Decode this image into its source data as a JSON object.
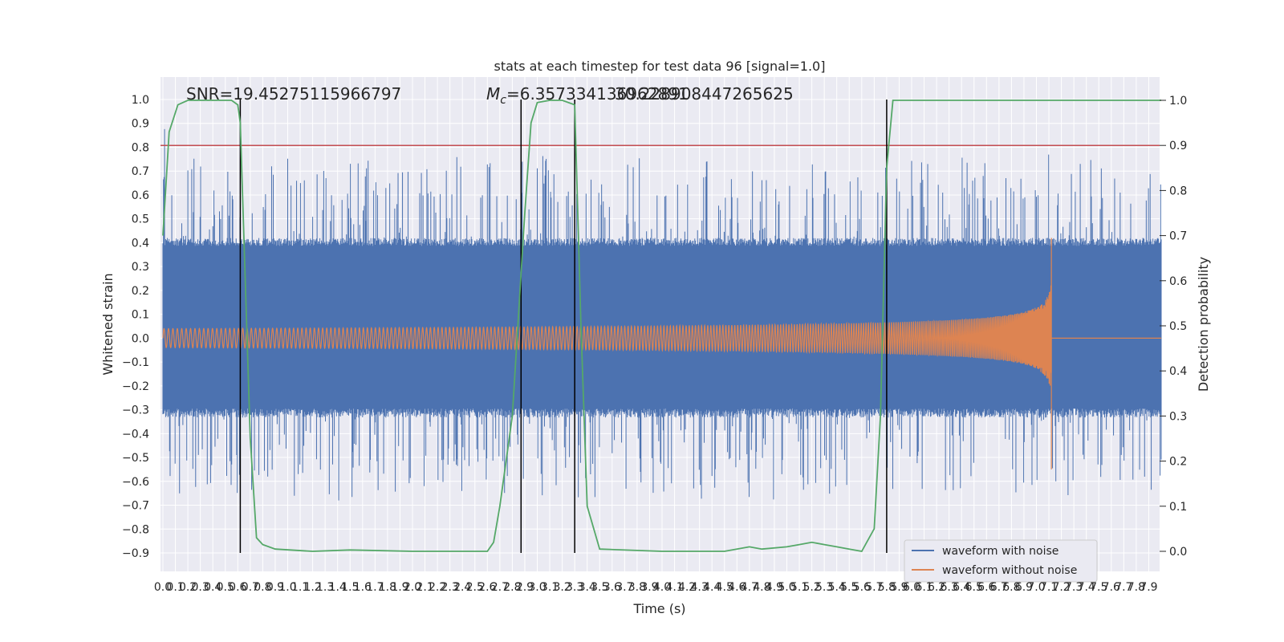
{
  "chart_data": {
    "type": "line",
    "title": "stats at each timestep for test data 96 [signal=1.0]",
    "xlabel": "Time (s)",
    "ylabel": "Whitened strain",
    "ylabel_right": "Detection probability",
    "xlim": [
      0.0,
      8.0
    ],
    "ylim": [
      -1.0,
      1.1
    ],
    "ylim_right": [
      -0.05,
      1.05
    ],
    "x_tick_labels": [
      "0.0",
      "0.1",
      "0.2",
      "0.3",
      "0.4",
      "0.5",
      "0.6",
      "0.7",
      "0.8",
      "0.9",
      "1.0",
      "1.1",
      "1.2",
      "1.3",
      "1.4",
      "1.5",
      "1.6",
      "1.7",
      "1.8",
      "1.9",
      "2.0",
      "2.1",
      "2.2",
      "2.3",
      "2.4",
      "2.5",
      "2.6",
      "2.7",
      "2.8",
      "2.9",
      "3.0",
      "3.1",
      "3.2",
      "3.3",
      "3.4",
      "3.5",
      "3.6",
      "3.7",
      "3.8",
      "3.9",
      "4.0",
      "4.1",
      "4.2",
      "4.3",
      "4.4",
      "4.5",
      "4.6",
      "4.7",
      "4.8",
      "4.9",
      "5.0",
      "5.1",
      "5.2",
      "5.3",
      "5.4",
      "5.5",
      "5.6",
      "5.7",
      "5.8",
      "5.9",
      "6.0",
      "6.1",
      "6.2",
      "6.3",
      "6.4",
      "6.5",
      "6.6",
      "6.7",
      "6.8",
      "6.9",
      "7.0",
      "7.1",
      "7.2",
      "7.3",
      "7.4",
      "7.5",
      "7.6",
      "7.7",
      "7.8",
      "7.9"
    ],
    "y_tick_labels": [
      "1.0",
      "0.9",
      "0.8",
      "0.7",
      "0.6",
      "0.5",
      "0.4",
      "0.3",
      "0.2",
      "0.1",
      "0.0",
      "−0.1",
      "−0.2",
      "−0.3",
      "−0.4",
      "−0.5",
      "−0.6",
      "−0.7",
      "−0.8",
      "−0.9"
    ],
    "y_tick_values": [
      1.0,
      0.9,
      0.8,
      0.7,
      0.6,
      0.5,
      0.4,
      0.3,
      0.2,
      0.1,
      0.0,
      -0.1,
      -0.2,
      -0.3,
      -0.4,
      -0.5,
      -0.6,
      -0.7,
      -0.8,
      -0.9
    ],
    "y2_tick_labels": [
      "1.0",
      "0.9",
      "0.8",
      "0.7",
      "0.6",
      "0.5",
      "0.4",
      "0.3",
      "0.2",
      "0.1",
      "0.0"
    ],
    "y2_tick_values": [
      1.0,
      0.9,
      0.8,
      0.7,
      0.6,
      0.5,
      0.4,
      0.3,
      0.2,
      0.1,
      0.0
    ],
    "annotations": {
      "snr": "SNR=19.45275115966797",
      "mc_prefix": "M",
      "mc_sub": "c",
      "mc_value": "=6.357334136962891",
      "overlap": "30.228908447265625"
    },
    "threshold_right": 0.9,
    "detection_markers_x": [
      0.62,
      2.87,
      3.3,
      5.8
    ],
    "noise_envelope": {
      "x": [
        0.0,
        1.0,
        2.0,
        3.0,
        4.0,
        5.0,
        6.0,
        7.0,
        8.0
      ],
      "upper": [
        0.42,
        0.42,
        0.42,
        0.42,
        0.42,
        0.42,
        0.42,
        0.42,
        0.42
      ],
      "lower": [
        -0.32,
        -0.32,
        -0.32,
        -0.32,
        -0.32,
        -0.32,
        -0.32,
        -0.32,
        -0.32
      ]
    },
    "clean_chirp": {
      "start_amplitude": 0.04,
      "peak_amplitude": 0.42,
      "peak_min": -0.55,
      "merger_time": 7.12,
      "end_time": 8.0
    },
    "detection_probability": {
      "x": [
        0.0,
        0.05,
        0.12,
        0.2,
        0.3,
        0.4,
        0.5,
        0.55,
        0.6,
        0.62,
        0.66,
        0.7,
        0.75,
        0.8,
        0.9,
        1.2,
        1.5,
        2.0,
        2.5,
        2.6,
        2.65,
        2.7,
        2.8,
        2.9,
        2.95,
        3.0,
        3.1,
        3.2,
        3.3,
        3.35,
        3.4,
        3.5,
        4.0,
        4.5,
        4.7,
        4.8,
        5.0,
        5.1,
        5.2,
        5.3,
        5.4,
        5.5,
        5.6,
        5.7,
        5.75,
        5.8,
        5.85,
        5.9,
        6.0,
        6.5,
        7.0,
        7.5,
        8.0
      ],
      "y": [
        0.7,
        0.93,
        0.99,
        1.0,
        1.0,
        1.0,
        1.0,
        1.0,
        0.99,
        0.95,
        0.6,
        0.25,
        0.03,
        0.015,
        0.005,
        0.0,
        0.003,
        0.0,
        0.0,
        0.0,
        0.02,
        0.1,
        0.3,
        0.75,
        0.95,
        0.995,
        1.0,
        1.0,
        0.99,
        0.5,
        0.1,
        0.005,
        0.0,
        0.0,
        0.01,
        0.005,
        0.01,
        0.015,
        0.02,
        0.015,
        0.01,
        0.005,
        0.0,
        0.05,
        0.3,
        0.85,
        1.0,
        1.0,
        1.0,
        1.0,
        1.0,
        1.0,
        1.0
      ]
    },
    "series": [
      {
        "name": "waveform with noise"
      },
      {
        "name": "waveform without noise"
      }
    ],
    "legend_position": "lower-right",
    "grid": true,
    "colors": {
      "noise": "#4c72b0",
      "clean": "#dd8452",
      "prob": "#55a868",
      "threshold": "#c44e52",
      "marker": "#000000",
      "background": "#eaeaf2",
      "grid": "#ffffff"
    }
  }
}
